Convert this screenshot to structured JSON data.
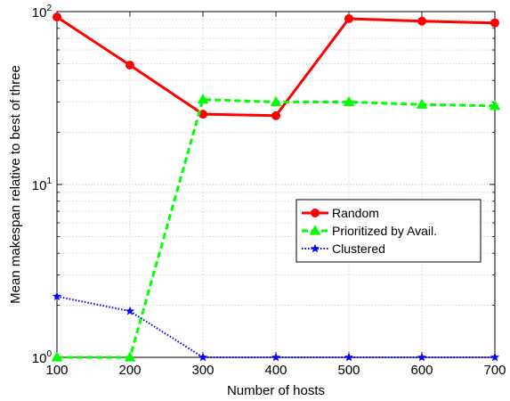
{
  "chart_data": {
    "type": "line",
    "xlabel": "Number of hosts",
    "ylabel": "Mean makespan relative to best of three",
    "xlim": [
      100,
      700
    ],
    "ylim": [
      1,
      100
    ],
    "yscale": "log",
    "grid": true,
    "x": [
      100,
      200,
      300,
      400,
      500,
      600,
      700
    ],
    "xticks": [
      "100",
      "200",
      "300",
      "400",
      "500",
      "600",
      "700"
    ],
    "yticks": [
      {
        "value": 1,
        "base": "10",
        "exp": "0"
      },
      {
        "value": 10,
        "base": "10",
        "exp": "1"
      },
      {
        "value": 100,
        "base": "10",
        "exp": "2"
      }
    ],
    "legend_position": "center-right",
    "series": [
      {
        "name": "Random",
        "color": "#ff0000",
        "style": "solid",
        "marker": "circle",
        "values": [
          93,
          49,
          25.5,
          25,
          91,
          88,
          86
        ]
      },
      {
        "name": "Prioritized by Avail.",
        "color": "#00ff00",
        "style": "dashed",
        "marker": "triangle",
        "values": [
          1.0,
          1.0,
          31,
          30,
          30,
          29,
          28.5
        ]
      },
      {
        "name": "Clustered",
        "color": "#0000ff",
        "style": "dotted",
        "marker": "star",
        "values": [
          2.25,
          1.85,
          1.0,
          1.0,
          1.0,
          1.0,
          1.0
        ]
      }
    ]
  }
}
